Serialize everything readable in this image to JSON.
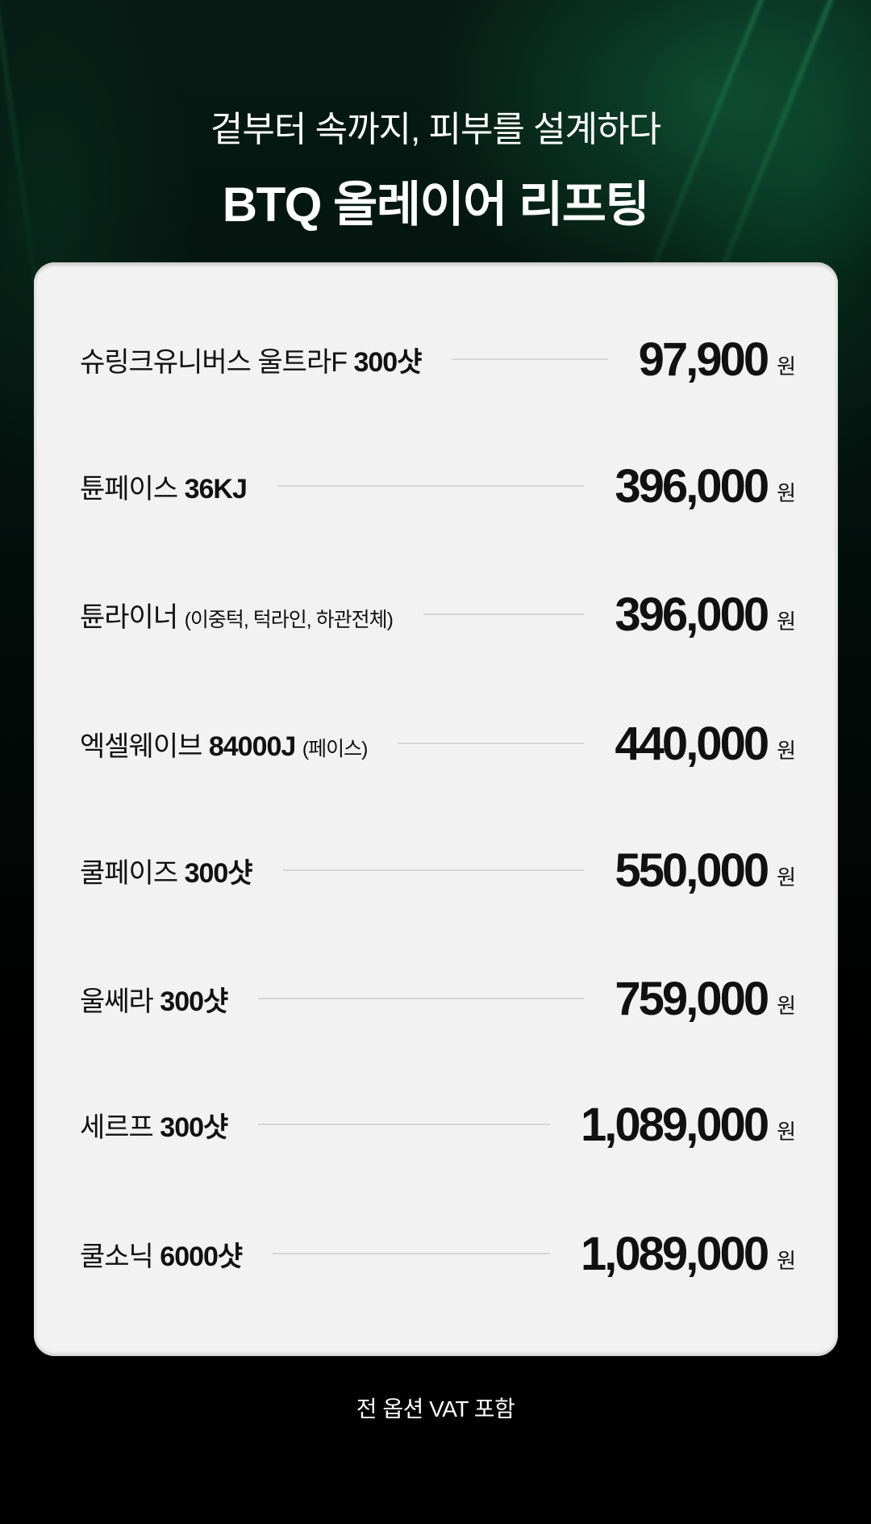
{
  "header": {
    "subtitle": "겉부터 속까지, 피부를 설계하다",
    "title": "BTQ 올레이어 리프팅"
  },
  "currency_unit": "원",
  "items": [
    {
      "name": "슈링크유니버스 울트라F",
      "spec": "300샷",
      "note": "",
      "price": "97,900"
    },
    {
      "name": "튠페이스",
      "spec": "36KJ",
      "note": "",
      "price": "396,000"
    },
    {
      "name": "튠라이너",
      "spec": "",
      "note": "(이중턱, 턱라인, 하관전체)",
      "price": "396,000"
    },
    {
      "name": "엑셀웨이브",
      "spec": "84000J",
      "note": "(페이스)",
      "price": "440,000"
    },
    {
      "name": "쿨페이즈",
      "spec": "300샷",
      "note": "",
      "price": "550,000"
    },
    {
      "name": "울쎄라",
      "spec": "300샷",
      "note": "",
      "price": "759,000"
    },
    {
      "name": "세르프",
      "spec": "300샷",
      "note": "",
      "price": "1,089,000"
    },
    {
      "name": "쿨소닉",
      "spec": "6000샷",
      "note": "",
      "price": "1,089,000"
    }
  ],
  "footer": {
    "note": "전 옵션 VAT 포함"
  }
}
